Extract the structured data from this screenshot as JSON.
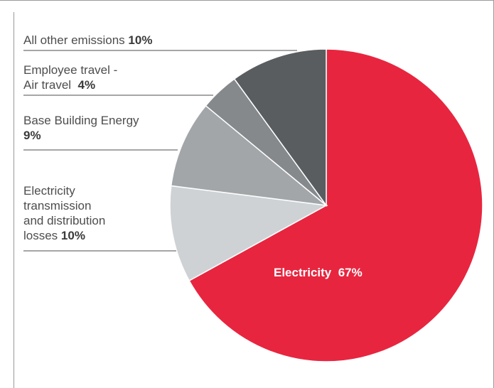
{
  "chart_data": {
    "type": "pie",
    "slices": [
      {
        "label": "Electricity",
        "value": 67,
        "value_text": "67%",
        "color": "#e8253f"
      },
      {
        "label": "Electricity transmission and distribution losses",
        "value": 10,
        "value_text": "10%",
        "color": "#cfd2d4"
      },
      {
        "label": "Base Building Energy",
        "value": 9,
        "value_text": "9%",
        "color": "#a3a6a9"
      },
      {
        "label": "Employee travel - Air travel",
        "value": 4,
        "value_text": "4%",
        "color": "#86898c"
      },
      {
        "label": "All other emissions",
        "value": 10,
        "value_text": "10%",
        "color": "#5a5d60"
      }
    ],
    "labels": {
      "electricity": {
        "name": "Electricity",
        "pct": "67%"
      },
      "tnd": {
        "line1": "Electricity",
        "line2": "transmission",
        "line3": "and distribution",
        "line4": "losses",
        "pct": "10%"
      },
      "base": {
        "line1": "Base Building Energy",
        "pct": "9%"
      },
      "air": {
        "line1": "Employee travel -",
        "line2": "Air travel",
        "pct": "4%"
      },
      "other": {
        "name": "All other emissions",
        "pct": "10%"
      }
    }
  }
}
